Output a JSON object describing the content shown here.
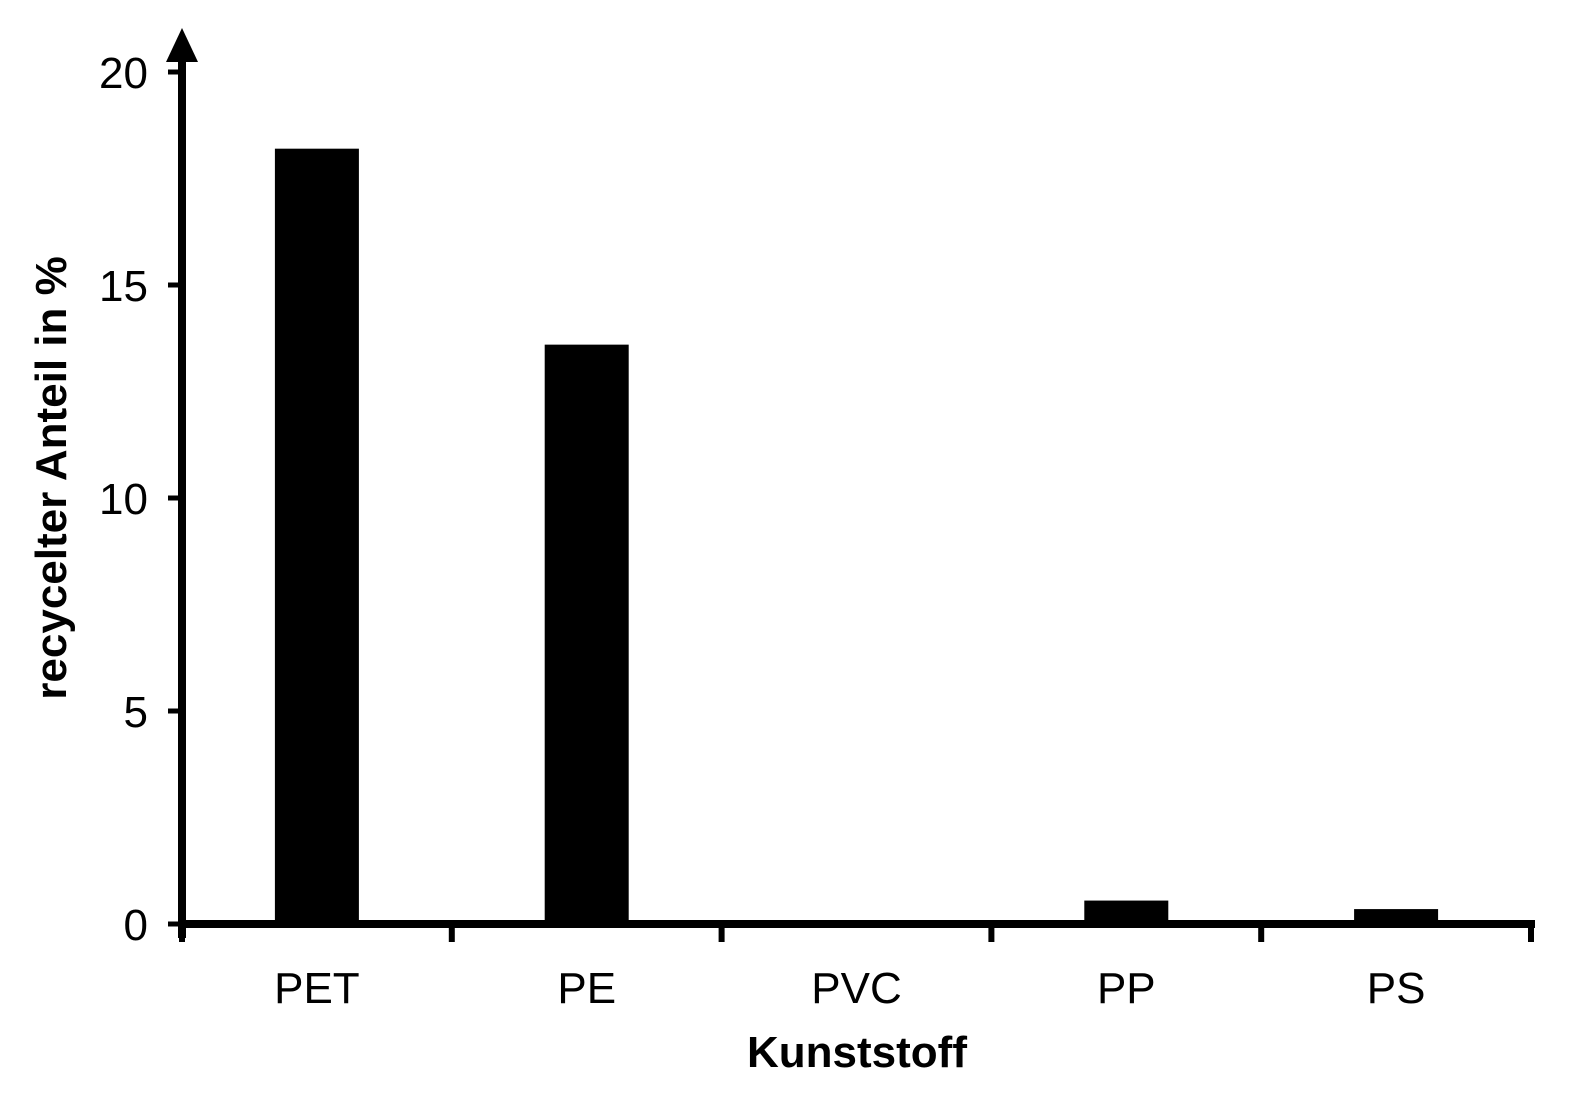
{
  "chart_data": {
    "type": "bar",
    "title": "",
    "xlabel": "Kunststoff",
    "ylabel": "recycelter Anteil in %",
    "categories": [
      "PET",
      "PE",
      "PVC",
      "PP",
      "PS"
    ],
    "values": [
      18.2,
      13.6,
      0.0,
      0.55,
      0.35
    ],
    "ylim": [
      0,
      20
    ],
    "yticks": [
      0,
      5,
      10,
      15,
      20
    ],
    "ytick_labels": [
      "0",
      "5",
      "10",
      "15",
      "20"
    ],
    "grid": false,
    "legend": "none",
    "bar_color": "#000000",
    "axis_color": "#000000"
  }
}
